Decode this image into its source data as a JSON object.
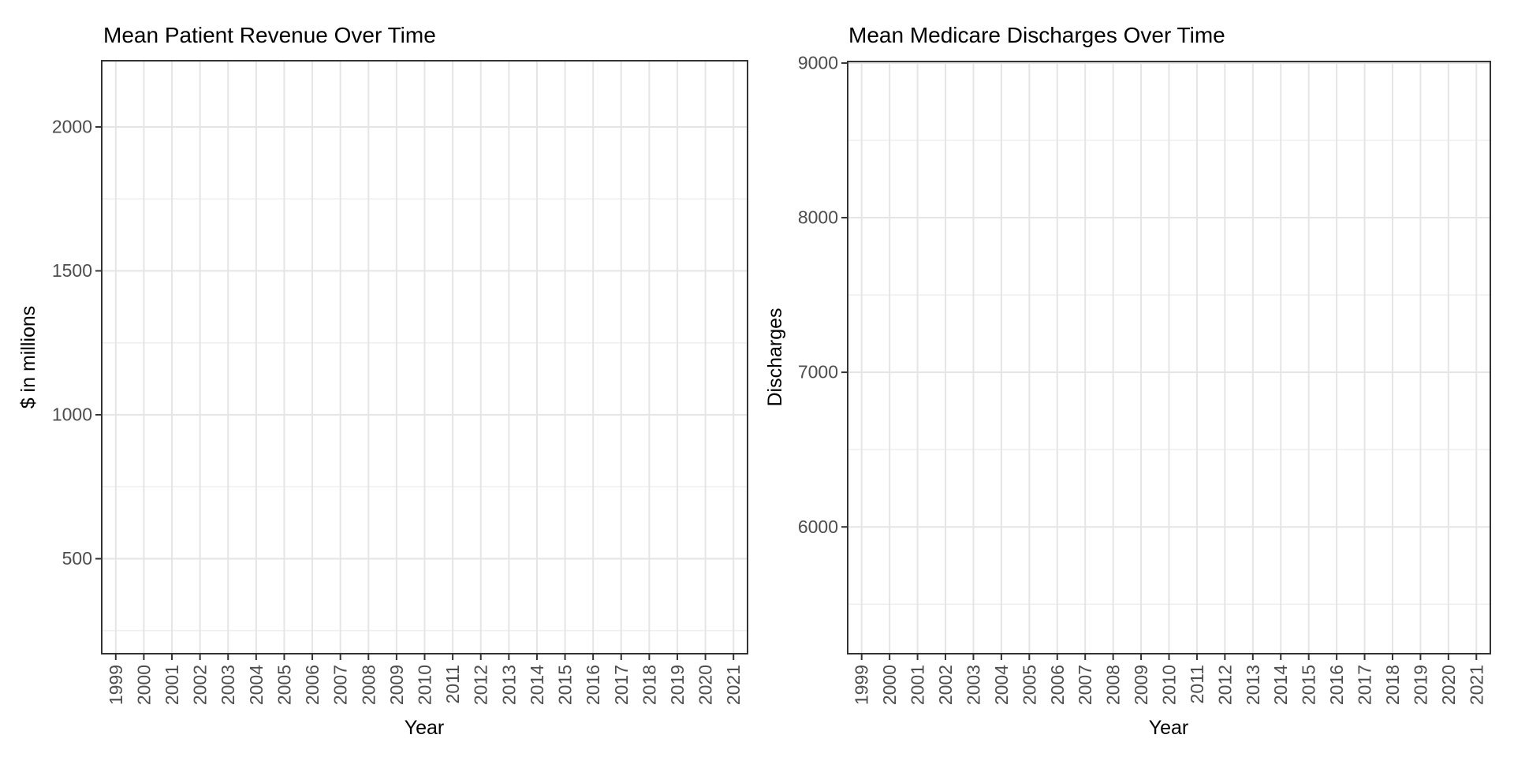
{
  "page": {
    "background_color": "#ffffff",
    "title_color": "#000000",
    "tick_label_color": "#4d4d4d",
    "grid_major_color": "#e5e5e5",
    "grid_minor_color": "#efefef",
    "panel_border_color": "#333333",
    "tick_mark_color": "#333333"
  },
  "chart_data": [
    {
      "type": "line",
      "title": "Mean Patient Revenue Over Time",
      "xlabel": "Year",
      "ylabel": "$ in millions",
      "categories": [
        "1999",
        "2000",
        "2001",
        "2002",
        "2003",
        "2004",
        "2005",
        "2006",
        "2007",
        "2008",
        "2009",
        "2010",
        "2011",
        "2012",
        "2013",
        "2014",
        "2015",
        "2016",
        "2017",
        "2018",
        "2019",
        "2020",
        "2021"
      ],
      "x_tick_label_angle_degrees": 90,
      "y_major_ticks": [
        500,
        1000,
        1500,
        2000
      ],
      "y_minor_gridlines": [
        250,
        750,
        1250,
        1750
      ],
      "ylim": [
        170,
        2230
      ],
      "series": [],
      "grid": "horizontal major+minor, vertical major at each year",
      "legend": "none",
      "panel_background": "#ffffff"
    },
    {
      "type": "line",
      "title": "Mean Medicare Discharges Over Time",
      "xlabel": "Year",
      "ylabel": "Discharges",
      "categories": [
        "1999",
        "2000",
        "2001",
        "2002",
        "2003",
        "2004",
        "2005",
        "2006",
        "2007",
        "2008",
        "2009",
        "2010",
        "2011",
        "2012",
        "2013",
        "2014",
        "2015",
        "2016",
        "2017",
        "2018",
        "2019",
        "2020",
        "2021"
      ],
      "x_tick_label_angle_degrees": 90,
      "y_major_ticks": [
        6000,
        7000,
        8000,
        9000
      ],
      "y_minor_gridlines": [
        5500,
        6500,
        7500,
        8500
      ],
      "ylim": [
        5180,
        9010
      ],
      "series": [],
      "grid": "horizontal major+minor, vertical major at each year",
      "legend": "none",
      "panel_background": "#ffffff"
    }
  ]
}
